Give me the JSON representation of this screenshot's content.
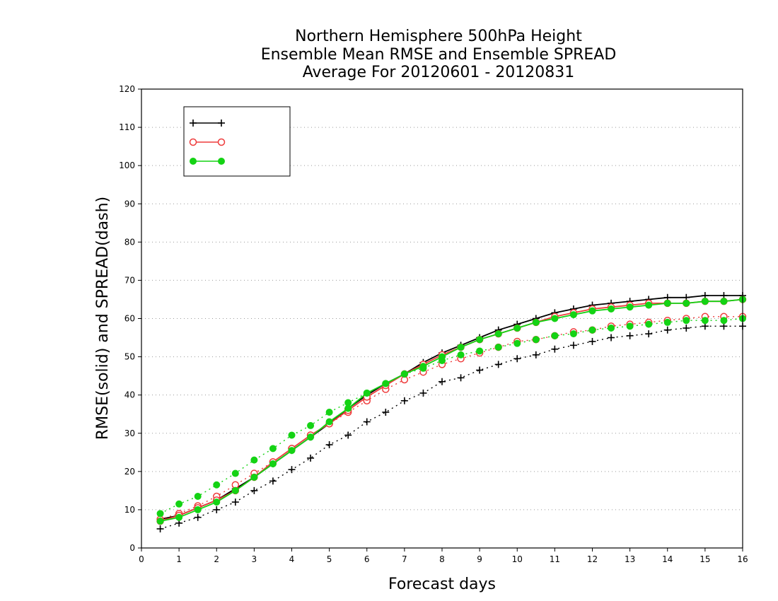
{
  "chart_data": {
    "type": "line",
    "title_lines": [
      "Northern Hemisphere 500hPa Height",
      "Ensemble Mean RMSE and Ensemble SPREAD",
      "Average For 20120601 - 20120831"
    ],
    "xlabel": "Forecast days",
    "ylabel": "RMSE(solid) and SPREAD(dash)",
    "xlim": [
      0,
      16
    ],
    "ylim": [
      0,
      120
    ],
    "xticks": [
      0,
      1,
      2,
      3,
      4,
      5,
      6,
      7,
      8,
      9,
      10,
      11,
      12,
      13,
      14,
      15,
      16
    ],
    "yticks": [
      0,
      10,
      20,
      30,
      40,
      50,
      60,
      70,
      80,
      90,
      100,
      110,
      120
    ],
    "grid": "horizontal dotted",
    "legend_position": "top-left",
    "x": [
      0.5,
      1,
      1.5,
      2,
      2.5,
      3,
      3.5,
      4,
      4.5,
      5,
      5.5,
      6,
      6.5,
      7,
      7.5,
      8,
      8.5,
      9,
      9.5,
      10,
      10.5,
      11,
      11.5,
      12,
      12.5,
      13,
      13.5,
      14,
      14.5,
      15,
      15.5,
      16
    ],
    "series": [
      {
        "name": "",
        "legend_glyph": "ꟷꟷ",
        "color": "#000000",
        "marker": "plus",
        "rmse": [
          7.5,
          8.5,
          10.5,
          12.5,
          15.5,
          18.5,
          22.0,
          25.5,
          29.0,
          32.5,
          36.5,
          40.0,
          43.0,
          45.5,
          48.5,
          51.0,
          53.0,
          55.0,
          57.0,
          58.5,
          60.0,
          61.5,
          62.5,
          63.5,
          64.0,
          64.5,
          65.0,
          65.5,
          65.5,
          66.0,
          66.0,
          66.0
        ],
        "spread": [
          5.0,
          6.5,
          8.0,
          10.0,
          12.0,
          15.0,
          17.5,
          20.5,
          23.5,
          27.0,
          29.5,
          33.0,
          35.5,
          38.5,
          40.5,
          43.5,
          44.5,
          46.5,
          48.0,
          49.5,
          50.5,
          52.0,
          53.0,
          54.0,
          55.0,
          55.5,
          56.0,
          57.0,
          57.5,
          58.0,
          58.0,
          58.0
        ]
      },
      {
        "name": "",
        "legend_glyph": "ꟷꟷ",
        "color": "#ee3b3b",
        "marker": "open-circle",
        "rmse": [
          7.0,
          8.5,
          10.5,
          12.5,
          15.0,
          18.5,
          22.5,
          26.0,
          29.5,
          32.5,
          36.0,
          39.5,
          42.5,
          45.5,
          48.0,
          50.5,
          52.5,
          54.5,
          56.0,
          57.5,
          59.0,
          60.5,
          61.5,
          62.5,
          63.0,
          63.5,
          64.0,
          64.0,
          64.0,
          64.5,
          64.5,
          65.0
        ],
        "spread": [
          7.5,
          9.0,
          11.0,
          13.5,
          16.5,
          19.5,
          22.5,
          26.0,
          29.5,
          32.5,
          35.5,
          38.5,
          41.5,
          44.0,
          46.0,
          48.0,
          49.5,
          51.0,
          52.5,
          54.0,
          54.5,
          55.5,
          56.5,
          57.0,
          58.0,
          58.5,
          59.0,
          59.5,
          60.0,
          60.5,
          60.5,
          60.5
        ]
      },
      {
        "name": "",
        "legend_glyph": "ꟷꟷ",
        "color": "#14d314",
        "marker": "filled-circle",
        "rmse": [
          7.0,
          8.0,
          10.0,
          12.0,
          15.0,
          18.5,
          22.0,
          25.5,
          29.0,
          33.0,
          36.5,
          40.5,
          43.0,
          45.5,
          47.5,
          50.0,
          52.5,
          54.5,
          56.0,
          57.5,
          59.0,
          60.0,
          61.0,
          62.0,
          62.5,
          63.0,
          63.5,
          64.0,
          64.0,
          64.5,
          64.5,
          65.0
        ],
        "spread": [
          9.0,
          11.5,
          13.5,
          16.5,
          19.5,
          23.0,
          26.0,
          29.5,
          32.0,
          35.5,
          38.0,
          40.5,
          43.0,
          45.5,
          47.0,
          49.0,
          50.5,
          51.5,
          52.5,
          53.5,
          54.5,
          55.5,
          56.0,
          57.0,
          57.5,
          58.0,
          58.5,
          59.0,
          59.5,
          59.5,
          59.5,
          60.0
        ]
      }
    ]
  }
}
